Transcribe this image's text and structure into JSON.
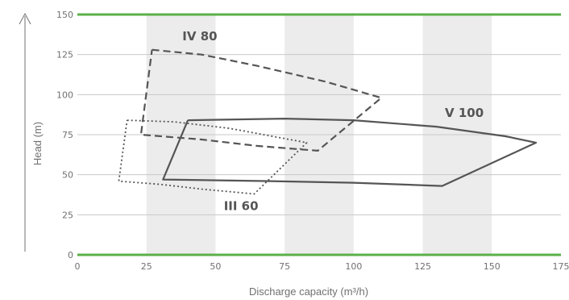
{
  "chart_data": {
    "type": "line",
    "xlabel": "Discharge capacity (m³/h)",
    "ylabel": "Head (m)",
    "xlim": [
      0,
      175
    ],
    "ylim": [
      0,
      150
    ],
    "x_ticks": [
      "0",
      "25",
      "50",
      "75",
      "100",
      "125",
      "150",
      "175"
    ],
    "y_ticks": [
      "0",
      "25",
      "50",
      "75",
      "100",
      "125",
      "150"
    ],
    "grid": "horizontal",
    "colors": {
      "boundary_line": "#5bb048",
      "grid": "#c8c8c8",
      "band": "#ececec",
      "curve": "#555555",
      "text": "#707070"
    },
    "series": [
      {
        "name": "IV 80",
        "style": "dashed",
        "points": [
          [
            27,
            128
          ],
          [
            45,
            125
          ],
          [
            65,
            118
          ],
          [
            90,
            108
          ],
          [
            110,
            98
          ],
          [
            87,
            65
          ],
          [
            65,
            68
          ],
          [
            45,
            72
          ],
          [
            23,
            75
          ],
          [
            27,
            128
          ]
        ]
      },
      {
        "name": "V 100",
        "style": "solid",
        "points": [
          [
            40,
            84
          ],
          [
            75,
            85
          ],
          [
            100,
            84
          ],
          [
            130,
            80
          ],
          [
            155,
            74
          ],
          [
            166,
            70
          ],
          [
            132,
            43
          ],
          [
            100,
            45
          ],
          [
            70,
            46
          ],
          [
            31,
            47
          ],
          [
            40,
            84
          ]
        ]
      },
      {
        "name": "III 60",
        "style": "dotted",
        "points": [
          [
            18,
            84
          ],
          [
            35,
            83
          ],
          [
            55,
            79
          ],
          [
            83,
            70
          ],
          [
            64,
            38
          ],
          [
            45,
            41
          ],
          [
            30,
            44
          ],
          [
            15,
            46
          ],
          [
            18,
            84
          ]
        ]
      }
    ],
    "series_label_positions": {
      "IV 80": [
        38,
        134
      ],
      "V 100": [
        133,
        86
      ],
      "III 60": [
        53,
        28
      ]
    }
  }
}
